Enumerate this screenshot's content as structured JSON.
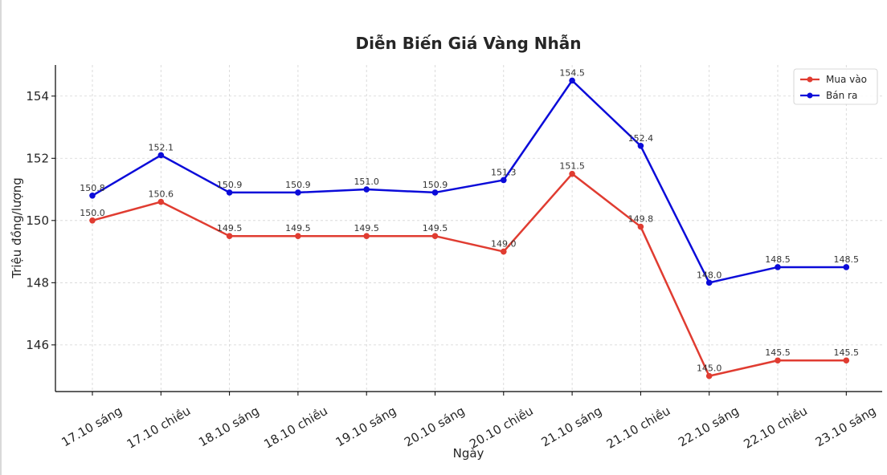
{
  "chart_data": {
    "type": "line",
    "title": "Diễn Biến Giá Vàng Nhẫn",
    "xlabel": "Ngày",
    "ylabel": "Triệu đồng/lượng",
    "categories": [
      "17.10 sáng",
      "17.10 chiều",
      "18.10 sáng",
      "18.10 chiều",
      "19.10 sáng",
      "20.10 sáng",
      "20.10 chiều",
      "21.10 sáng",
      "21.10 chiều",
      "22.10 sáng",
      "22.10 chiều",
      "23.10 sáng"
    ],
    "series": [
      {
        "name": "Mua vào",
        "color": "#e03c31",
        "values": [
          150.0,
          150.6,
          149.5,
          149.5,
          149.5,
          149.5,
          149.0,
          151.5,
          149.8,
          145.0,
          145.5,
          145.5
        ]
      },
      {
        "name": "Bán ra",
        "color": "#0b0bd9",
        "values": [
          150.8,
          152.1,
          150.9,
          150.9,
          151.0,
          150.9,
          151.3,
          154.5,
          152.4,
          148.0,
          148.5,
          148.5
        ]
      }
    ],
    "ylim": [
      144.5,
      155.0
    ],
    "yticks": [
      146,
      148,
      150,
      152,
      154
    ],
    "grid": true,
    "legend_position": "top-right"
  }
}
